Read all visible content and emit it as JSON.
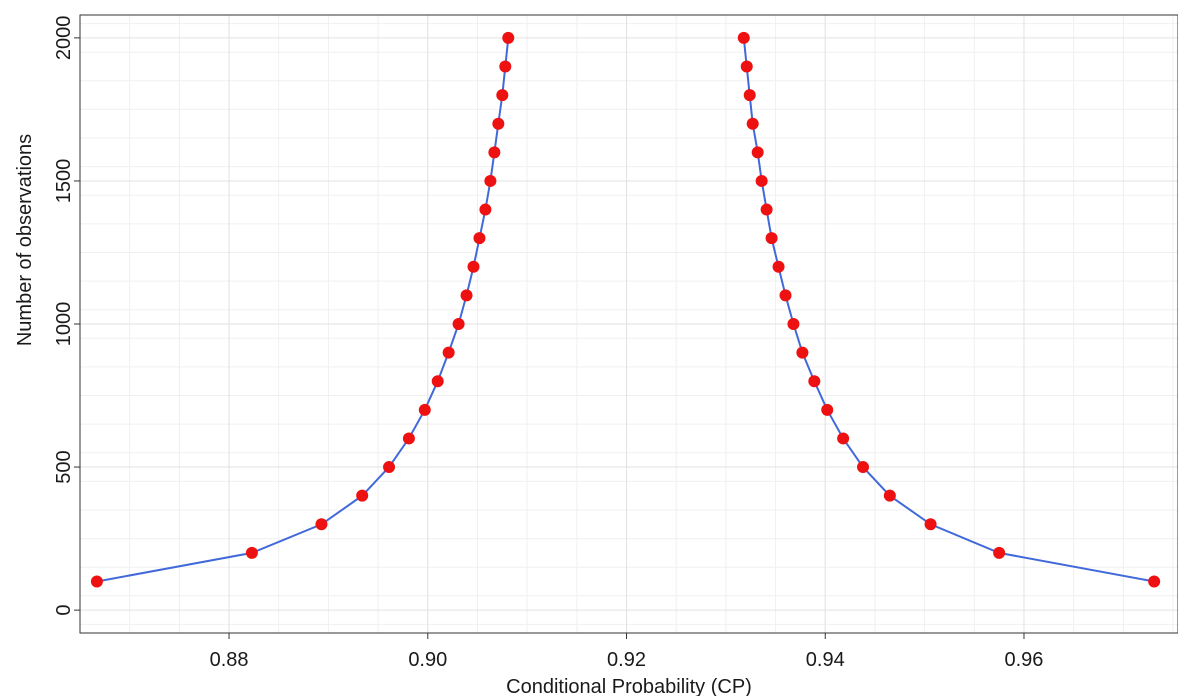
{
  "chart_data": {
    "type": "line",
    "title": "",
    "xlabel": "Conditional Probability (CP)",
    "ylabel": "Number of observations",
    "xlim": [
      0.865,
      0.9755
    ],
    "ylim": [
      -80,
      2080
    ],
    "xticks": [
      0.88,
      0.9,
      0.92,
      0.94,
      0.96
    ],
    "xtick_labels": [
      "0.88",
      "0.90",
      "0.92",
      "0.94",
      "0.96"
    ],
    "yticks": [
      0,
      500,
      1000,
      1500,
      2000
    ],
    "ytick_labels": [
      "0",
      "500",
      "1000",
      "1500",
      "2000"
    ],
    "grid": true,
    "line_color": "#4169d9",
    "marker_color": "#ee1111",
    "series": [
      {
        "x": [
          0.8667,
          0.8823,
          0.8893,
          0.8934,
          0.8961,
          0.8981,
          0.8997,
          0.901,
          0.9021,
          0.9031,
          0.9039,
          0.9046,
          0.9052,
          0.9058,
          0.9063,
          0.9067,
          0.9071,
          0.9075,
          0.9078,
          0.9081
        ],
        "y": [
          100,
          200,
          300,
          400,
          500,
          600,
          700,
          800,
          900,
          1000,
          1100,
          1200,
          1300,
          1400,
          1500,
          1600,
          1700,
          1800,
          1900,
          2000
        ]
      },
      {
        "x": [
          0.9731,
          0.9575,
          0.9506,
          0.9465,
          0.9438,
          0.9418,
          0.9402,
          0.9389,
          0.9377,
          0.9368,
          0.936,
          0.9353,
          0.9346,
          0.9341,
          0.9336,
          0.9332,
          0.9327,
          0.9324,
          0.9321,
          0.9318
        ],
        "y": [
          100,
          200,
          300,
          400,
          500,
          600,
          700,
          800,
          900,
          1000,
          1100,
          1200,
          1300,
          1400,
          1500,
          1600,
          1700,
          1800,
          1900,
          2000
        ]
      }
    ]
  }
}
